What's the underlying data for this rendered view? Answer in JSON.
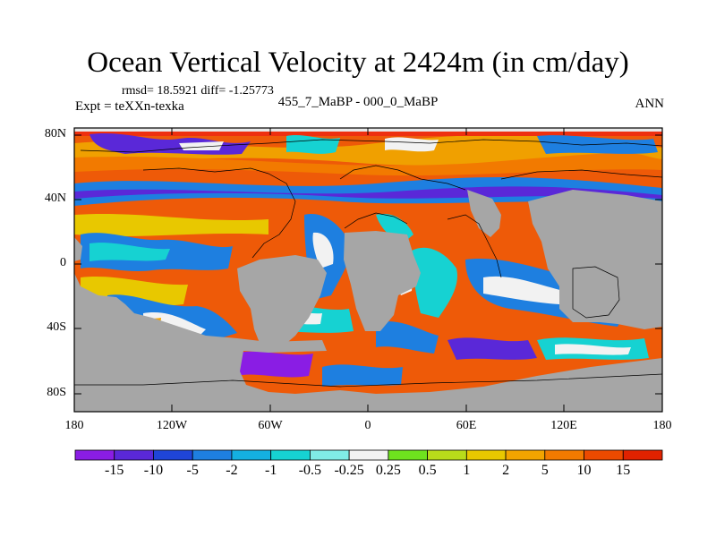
{
  "title": "Ocean Vertical Velocity at 2424m (in cm/day)",
  "stats_line": "rmsd= 18.5921 diff= -1.25773",
  "experiment_label": "Expt = teXXn-texka",
  "difference_label": "455_7_MaBP - 000_0_MaBP",
  "season_label": "ANN",
  "lat_ticks": [
    "80N",
    "40N",
    "0",
    "40S",
    "80S"
  ],
  "lon_ticks": [
    "180",
    "120W",
    "60W",
    "0",
    "60E",
    "120E",
    "180"
  ],
  "colorbar": {
    "labels": [
      "-15",
      "-10",
      "-5",
      "-2",
      "-1",
      "-0.5",
      "-0.25",
      "0.25",
      "0.5",
      "1",
      "2",
      "5",
      "10",
      "15"
    ],
    "colors": [
      "#8a1de4",
      "#5a28d8",
      "#1f45d8",
      "#1e7fe0",
      "#14b0e0",
      "#16d2d2",
      "#80ece6",
      "#f2f2f2",
      "#6ee21e",
      "#b8dc1a",
      "#e8c800",
      "#f2a400",
      "#f27a00",
      "#ec4a00",
      "#e02200"
    ]
  },
  "land_color": "#a6a6a6"
}
